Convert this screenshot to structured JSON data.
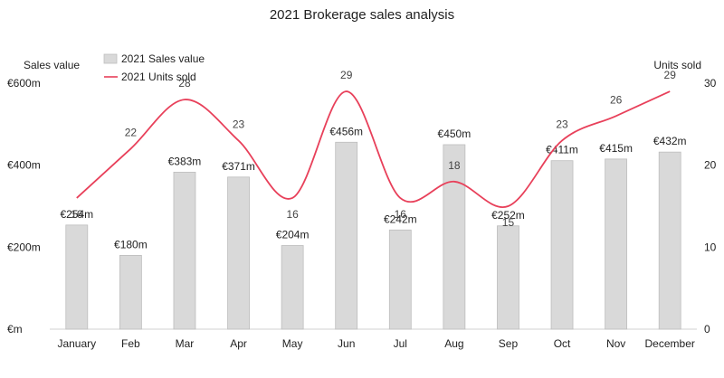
{
  "chart_data": {
    "type": "bar",
    "title": "2021 Brokerage sales analysis",
    "categories": [
      "January",
      "Feb",
      "Mar",
      "Apr",
      "May",
      "Jun",
      "Jul",
      "Aug",
      "Sep",
      "Oct",
      "Nov",
      "December"
    ],
    "y_left": {
      "label": "Sales value",
      "ylim": [
        0,
        600
      ],
      "ticks": [
        {
          "value": 0,
          "label": "€m"
        },
        {
          "value": 200,
          "label": "€200m"
        },
        {
          "value": 400,
          "label": "€400m"
        },
        {
          "value": 600,
          "label": "€600m"
        }
      ]
    },
    "y_right": {
      "label": "Units sold",
      "ylim": [
        0,
        30
      ],
      "ticks": [
        {
          "value": 0,
          "label": "0"
        },
        {
          "value": 10,
          "label": "10"
        },
        {
          "value": 20,
          "label": "20"
        },
        {
          "value": 30,
          "label": "30"
        }
      ]
    },
    "series": [
      {
        "name": "2021 Sales value",
        "kind": "bar",
        "axis": "left",
        "color": "#d9d9d9",
        "values": [
          254,
          180,
          383,
          371,
          204,
          456,
          242,
          450,
          252,
          411,
          415,
          432
        ],
        "labels": [
          "€254m",
          "€180m",
          "€383m",
          "€371m",
          "€204m",
          "€456m",
          "€242m",
          "€450m",
          "€252m",
          "€411m",
          "€415m",
          "€432m"
        ]
      },
      {
        "name": "2021 Units sold",
        "kind": "line",
        "axis": "right",
        "color": "#e8405a",
        "smooth": true,
        "values": [
          16,
          22,
          28,
          23,
          16,
          29,
          16,
          18,
          15,
          23,
          26,
          29
        ],
        "labels": [
          "16",
          "22",
          "28",
          "23",
          "16",
          "29",
          "16",
          "18",
          "15",
          "23",
          "26",
          "29"
        ]
      }
    ],
    "legend_position": "top-left",
    "grid": false
  }
}
